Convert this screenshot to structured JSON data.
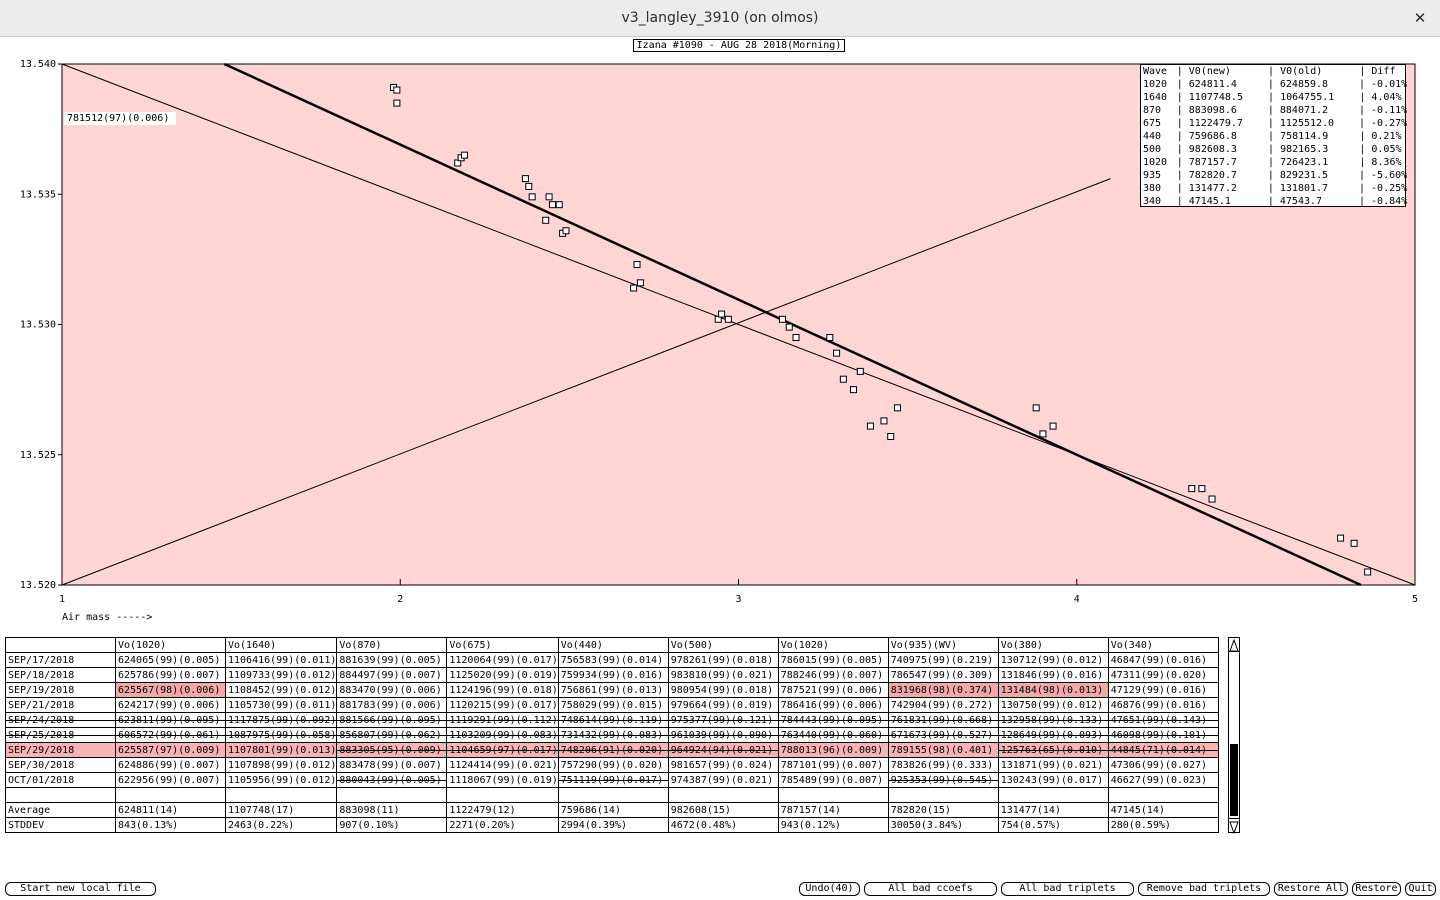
{
  "window": {
    "title": "v3_langley_3910 (on olmos)",
    "close_icon": "close-icon"
  },
  "plot": {
    "title": "Izana #1090 - AUG 28 2018(Morning)",
    "fit_label": "781512(97)(0.006)",
    "x_axis_note": "Air mass ----->",
    "background_color": "#ffd5d5",
    "y_ticks": [
      "13.540",
      "13.535",
      "13.530",
      "13.525",
      "13.520"
    ],
    "x_ticks": [
      "1",
      "2",
      "3",
      "4",
      "5"
    ]
  },
  "chart_data": {
    "type": "scatter",
    "title": "Izana #1090 - AUG 28 2018(Morning)",
    "xlabel": "Air mass ----->",
    "ylabel": "",
    "xlim": [
      1,
      5
    ],
    "ylim": [
      13.52,
      13.54
    ],
    "points": [
      [
        1.98,
        13.5391
      ],
      [
        1.99,
        13.5385
      ],
      [
        1.99,
        13.539
      ],
      [
        2.17,
        13.5362
      ],
      [
        2.18,
        13.5364
      ],
      [
        2.19,
        13.5365
      ],
      [
        2.37,
        13.5356
      ],
      [
        2.38,
        13.5353
      ],
      [
        2.39,
        13.5349
      ],
      [
        2.43,
        13.534
      ],
      [
        2.44,
        13.5349
      ],
      [
        2.45,
        13.5346
      ],
      [
        2.47,
        13.5346
      ],
      [
        2.48,
        13.5335
      ],
      [
        2.49,
        13.5336
      ],
      [
        2.69,
        13.5314
      ],
      [
        2.7,
        13.5323
      ],
      [
        2.71,
        13.5316
      ],
      [
        2.94,
        13.5302
      ],
      [
        2.95,
        13.5304
      ],
      [
        2.97,
        13.5302
      ],
      [
        3.13,
        13.5302
      ],
      [
        3.15,
        13.5299
      ],
      [
        3.17,
        13.5295
      ],
      [
        3.27,
        13.5295
      ],
      [
        3.29,
        13.5289
      ],
      [
        3.31,
        13.5279
      ],
      [
        3.34,
        13.5275
      ],
      [
        3.36,
        13.5282
      ],
      [
        3.39,
        13.5261
      ],
      [
        3.43,
        13.5263
      ],
      [
        3.45,
        13.5257
      ],
      [
        3.47,
        13.5268
      ],
      [
        3.88,
        13.5268
      ],
      [
        3.9,
        13.5258
      ],
      [
        3.93,
        13.5261
      ],
      [
        4.34,
        13.5237
      ],
      [
        4.37,
        13.5237
      ],
      [
        4.4,
        13.5233
      ],
      [
        4.78,
        13.5218
      ],
      [
        4.82,
        13.5216
      ],
      [
        4.86,
        13.5205
      ]
    ],
    "lines": [
      {
        "name": "fit",
        "points": [
          [
            1.48,
            13.54
          ],
          [
            4.84,
            13.52
          ]
        ]
      },
      {
        "name": "fit-thin-1",
        "points": [
          [
            1.0,
            13.54
          ],
          [
            5.0,
            13.52
          ]
        ]
      },
      {
        "name": "fit-thin-2",
        "points": [
          [
            1.0,
            13.52
          ],
          [
            4.1,
            13.5356
          ]
        ]
      }
    ]
  },
  "coef_table": {
    "headers": [
      "Wave",
      "V0(new)",
      "V0(old)",
      "Diff"
    ],
    "rows": [
      [
        "1020",
        "624811.4",
        "624859.8",
        "-0.01%"
      ],
      [
        "1640",
        "1107748.5",
        "1064755.1",
        "4.04%"
      ],
      [
        "870",
        "883098.6",
        "884071.2",
        "-0.11%"
      ],
      [
        "675",
        "1122479.7",
        "1125512.0",
        "-0.27%"
      ],
      [
        "440",
        "759686.8",
        "758114.9",
        "0.21%"
      ],
      [
        "500",
        "982608.3",
        "982165.3",
        "0.05%"
      ],
      [
        "1020",
        "787157.7",
        "726423.1",
        "8.36%"
      ],
      [
        "935",
        "782820.7",
        "829231.5",
        "-5.60%"
      ],
      [
        "380",
        "131477.2",
        "131801.7",
        "-0.25%"
      ],
      [
        "340",
        "47145.1",
        "47543.7",
        "-0.84%"
      ]
    ]
  },
  "vo_table": {
    "headers": [
      "",
      "Vo(1020)",
      "Vo(1640)",
      "Vo(870)",
      "Vo(675)",
      "Vo(440)",
      "Vo(500)",
      "Vo(1020)",
      "Vo(935)(WV)",
      "Vo(380)",
      "Vo(340)"
    ],
    "rows": [
      [
        "SEP/17/2018",
        "624065(99)(0.005)",
        "1106416(99)(0.011)",
        "881639(99)(0.005)",
        "1120064(99)(0.017)",
        "756583(99)(0.014)",
        "978261(99)(0.018)",
        "786015(99)(0.005)",
        "740975(99)(0.219)",
        "130712(99)(0.012)",
        "46847(99)(0.016)"
      ],
      [
        "SEP/18/2018",
        "625786(99)(0.007)",
        "1109733(99)(0.012)",
        "884497(99)(0.007)",
        "1125020(99)(0.019)",
        "759934(99)(0.016)",
        "983810(99)(0.021)",
        "788246(99)(0.007)",
        "786547(99)(0.309)",
        "131846(99)(0.016)",
        "47311(99)(0.020)"
      ],
      [
        "SEP/19/2018",
        "625567(98)(0.006)",
        "1108452(99)(0.012)",
        "883470(99)(0.006)",
        "1124196(99)(0.018)",
        "756861(99)(0.013)",
        "980954(99)(0.018)",
        "787521(99)(0.006)",
        "831968(98)(0.374)",
        "131484(98)(0.013)",
        "47129(99)(0.016)"
      ],
      [
        "SEP/21/2018",
        "624217(99)(0.006)",
        "1105730(99)(0.011)",
        "881783(99)(0.006)",
        "1120215(99)(0.017)",
        "758029(99)(0.015)",
        "979664(99)(0.019)",
        "786416(99)(0.006)",
        "742904(99)(0.272)",
        "130750(99)(0.012)",
        "46876(99)(0.016)"
      ],
      [
        "SEP/24/2018",
        "623811(99)(0.095)",
        "1117875(99)(0.092)",
        "881566(99)(0.095)",
        "1119291(99)(0.112)",
        "748614(99)(0.119)",
        "975377(99)(0.121)",
        "784443(99)(0.095)",
        "761831(99)(0.668)",
        "132958(99)(0.133)",
        "47651(99)(0.143)"
      ],
      [
        "SEP/25/2018",
        "606572(99)(0.061)",
        "1087975(99)(0.058)",
        "856807(99)(0.062)",
        "1103209(99)(0.083)",
        "731432(99)(0.083)",
        "961039(99)(0.090)",
        "763440(99)(0.060)",
        "671673(99)(0.527)",
        "128649(99)(0.093)",
        "46098(99)(0.101)"
      ],
      [
        "SEP/29/2018",
        "625587(97)(0.009)",
        "1107801(99)(0.013)",
        "883305(95)(0.009)",
        "1104659(97)(0.017)",
        "748206(91)(0.020)",
        "964924(94)(0.021)",
        "788013(96)(0.009)",
        "789155(98)(0.401)",
        "125763(65)(0.010)",
        "44845(71)(0.014)"
      ],
      [
        "SEP/30/2018",
        "624886(99)(0.007)",
        "1107898(99)(0.012)",
        "883478(99)(0.007)",
        "1124414(99)(0.021)",
        "757290(99)(0.020)",
        "981657(99)(0.024)",
        "787101(99)(0.007)",
        "783826(99)(0.333)",
        "131871(99)(0.021)",
        "47306(99)(0.027)"
      ],
      [
        "OCT/01/2018",
        "622956(99)(0.007)",
        "1105956(99)(0.012)",
        "880043(99)(0.005)",
        "1118067(99)(0.019)",
        "751119(99)(0.017)",
        "974387(99)(0.021)",
        "785489(99)(0.007)",
        "925353(99)(0.545)",
        "130243(99)(0.017)",
        "46627(99)(0.023)"
      ]
    ],
    "average": [
      "Average",
      "624811(14)",
      "1107748(17)",
      "883098(11)",
      "1122479(12)",
      "759686(14)",
      "982608(15)",
      "787157(14)",
      "782820(15)",
      "131477(14)",
      "47145(14)"
    ],
    "stddev": [
      "STDDEV",
      " 843(0.13%)",
      "2463(0.22%)",
      " 907(0.10%)",
      "2271(0.20%)",
      "2994(0.39%)",
      "4672(0.48%)",
      " 943(0.12%)",
      "30050(3.84%)",
      " 754(0.57%)",
      " 280(0.59%)"
    ]
  },
  "buttons": {
    "start_new": "Start new local file",
    "undo": "Undo(40)",
    "all_bad_ccoefs": "All bad ccoefs",
    "all_bad_triplets": "All bad triplets",
    "remove_bad_triplets": "Remove bad triplets",
    "restore_all": "Restore All",
    "restore": "Restore",
    "quit": "Quit"
  }
}
